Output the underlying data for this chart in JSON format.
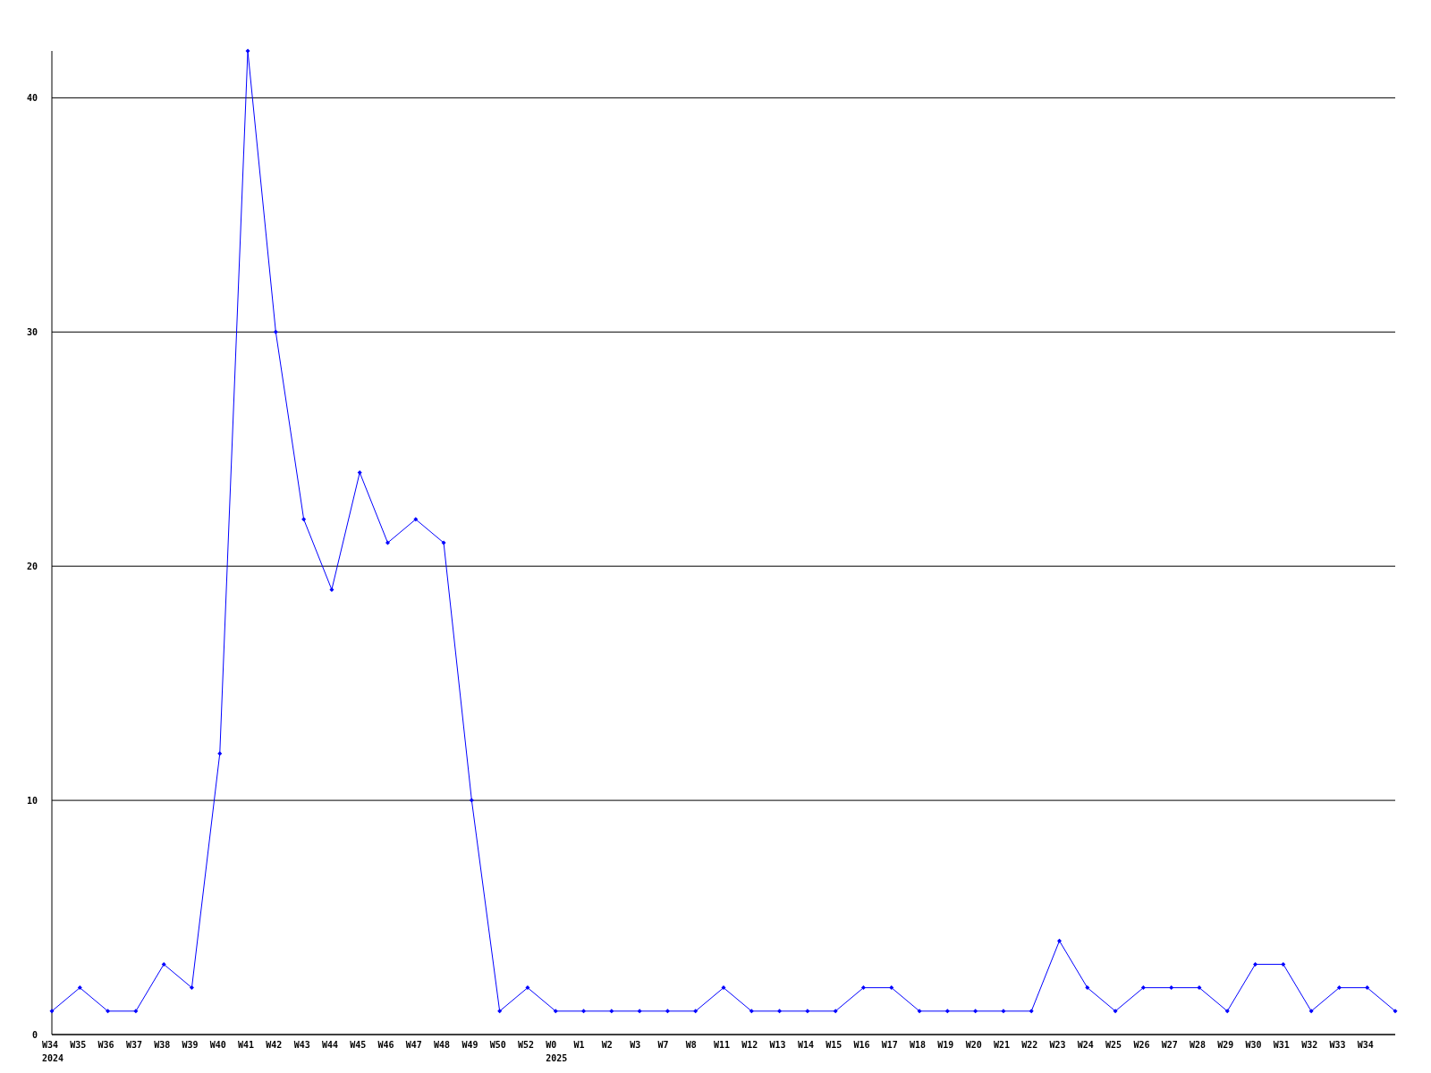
{
  "chart_data": {
    "type": "line",
    "categories": [
      "W34\n2024",
      "W35",
      "W36",
      "W37",
      "W38",
      "W39",
      "W40",
      "W41",
      "W42",
      "W43",
      "W44",
      "W45",
      "W46",
      "W47",
      "W48",
      "W49",
      "W50",
      "W52",
      "W0\n2025",
      "W1",
      "W2",
      "W3",
      "W7",
      "W8",
      "W11",
      "W12",
      "W13",
      "W14",
      "W15",
      "W16",
      "W17",
      "W18",
      "W19",
      "W20",
      "W21",
      "W22",
      "W23",
      "W24",
      "W25",
      "W26",
      "W27",
      "W28",
      "W29",
      "W30",
      "W31",
      "W32",
      "W33",
      "W34",
      null
    ],
    "series": [
      {
        "color": "#0000ff",
        "values": [
          1,
          2,
          1,
          1,
          3,
          2,
          12,
          42,
          30,
          22,
          19,
          24,
          21,
          22,
          21,
          10,
          1,
          2,
          1,
          1,
          1,
          1,
          1,
          1,
          2,
          1,
          1,
          1,
          1,
          2,
          2,
          1,
          1,
          1,
          1,
          1,
          4,
          2,
          1,
          2,
          2,
          2,
          1,
          3,
          3,
          1,
          2,
          2,
          1
        ]
      }
    ],
    "ylim": [
      0,
      42
    ],
    "yticks": [
      0,
      10,
      20,
      30,
      40
    ],
    "grid": "y",
    "marker": "diamond",
    "line_style": "solid"
  }
}
